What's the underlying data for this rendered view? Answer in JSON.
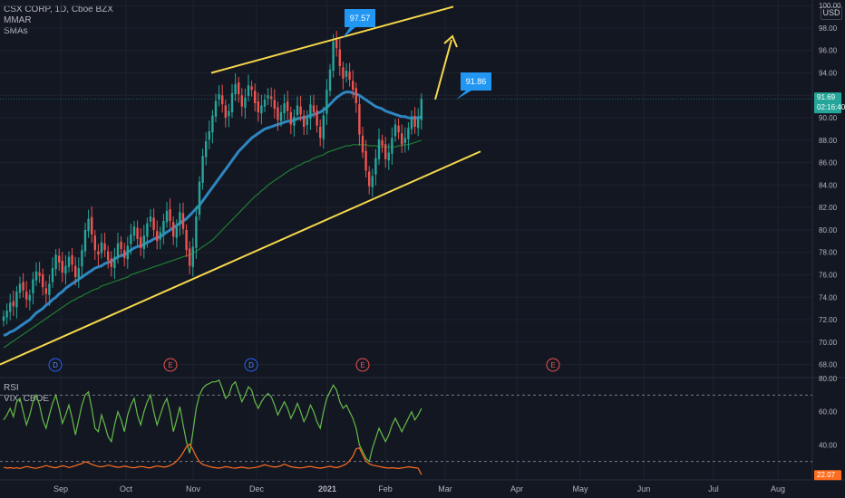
{
  "header": {
    "symbol_line": "CSX CORP, 1D, Cboe BZX",
    "indicator1": "MMAR",
    "indicator2": "SMAs",
    "currency": "USD"
  },
  "lower_pane": {
    "indicator1": "RSI",
    "indicator2": "VIX, CBOE"
  },
  "price_labels": {
    "last_price": "91.69",
    "countdown": "02:16:40",
    "vix_value": "22.07",
    "peak_callout": "97.57",
    "target_callout": "91.86"
  },
  "colors": {
    "background": "#131722",
    "up": "#26a69a",
    "down": "#ef5350",
    "trendline": "#f7d94c",
    "sma_blue": "#2e86c1",
    "sma_green": "#1e7d32",
    "rsi": "#66bb4a",
    "vix": "#ff6d1f",
    "callout": "#2196f3"
  },
  "chart_data": {
    "type": "candlestick",
    "title": "CSX CORP, 1D, Cboe BZX",
    "price_axis": {
      "range": [
        67,
        100.5
      ],
      "ticks": [
        68,
        70,
        72,
        74,
        76,
        78,
        80,
        82,
        84,
        86,
        88,
        90,
        92,
        94,
        96,
        98,
        100
      ]
    },
    "indicator_axis": {
      "range": [
        20,
        80
      ],
      "ticks": [
        40,
        60,
        80
      ],
      "levels": [
        70,
        30
      ]
    },
    "time_axis": [
      "Sep",
      "Oct",
      "Nov",
      "Dec",
      "2021",
      "Feb",
      "Mar",
      "Apr",
      "May",
      "Jun",
      "Jul",
      "Aug"
    ],
    "close_series": [
      72.3,
      72.8,
      73.5,
      73.2,
      74.5,
      75.2,
      74.6,
      73.8,
      74.2,
      75.6,
      76.3,
      75.9,
      74.9,
      74.3,
      75.2,
      76.6,
      77.8,
      77.1,
      76.2,
      76.8,
      77.6,
      76.9,
      75.8,
      76.6,
      78.2,
      80.0,
      81.0,
      79.6,
      78.2,
      77.8,
      78.9,
      78.2,
      77.3,
      76.7,
      77.6,
      78.8,
      78.3,
      77.5,
      78.6,
      79.6,
      80.3,
      79.2,
      78.4,
      79.5,
      80.6,
      81.2,
      80.0,
      79.0,
      79.8,
      80.8,
      81.7,
      80.8,
      79.4,
      80.3,
      81.6,
      80.1,
      78.2,
      76.8,
      78.5,
      81.2,
      84.3,
      86.6,
      87.9,
      88.8,
      90.2,
      91.5,
      92.1,
      91.2,
      90.0,
      90.6,
      92.2,
      93.0,
      92.1,
      91.0,
      91.8,
      92.9,
      92.5,
      91.3,
      90.5,
      91.1,
      91.6,
      92.0,
      91.7,
      90.8,
      89.8,
      90.5,
      91.3,
      90.6,
      89.4,
      90.1,
      91.1,
      90.3,
      89.2,
      90.0,
      91.2,
      90.5,
      89.3,
      88.2,
      90.2,
      92.5,
      94.3,
      96.8,
      96.2,
      94.6,
      93.5,
      94.2,
      93.4,
      92.5,
      91.3,
      88.5,
      86.9,
      85.3,
      83.9,
      84.8,
      86.4,
      88.1,
      87.5,
      86.3,
      86.9,
      88.2,
      89.4,
      88.7,
      87.6,
      88.2,
      89.1,
      90.0,
      89.2,
      89.9,
      91.69
    ],
    "sma_blue": [
      70.6,
      70.7,
      70.9,
      71.0,
      71.2,
      71.4,
      71.6,
      71.8,
      72.0,
      72.3,
      72.6,
      72.8,
      73.0,
      73.3,
      73.5,
      73.8,
      74.0,
      74.3,
      74.5,
      74.8,
      75.0,
      75.2,
      75.4,
      75.6,
      75.8,
      76.0,
      76.2,
      76.4,
      76.6,
      76.7,
      76.8,
      77.0,
      77.1,
      77.2,
      77.4,
      77.6,
      77.7,
      77.8,
      78.0,
      78.2,
      78.4,
      78.5,
      78.6,
      78.7,
      78.9,
      79.0,
      79.2,
      79.3,
      79.4,
      79.6,
      79.8,
      80.0,
      80.2,
      80.4,
      80.6,
      80.8,
      81.0,
      81.3,
      81.6,
      81.9,
      82.2,
      82.6,
      83.0,
      83.4,
      83.8,
      84.2,
      84.6,
      85.0,
      85.4,
      85.8,
      86.2,
      86.6,
      87.0,
      87.3,
      87.6,
      87.9,
      88.2,
      88.4,
      88.6,
      88.8,
      89.0,
      89.1,
      89.2,
      89.3,
      89.4,
      89.5,
      89.6,
      89.7,
      89.7,
      89.8,
      89.9,
      90.0,
      90.0,
      90.1,
      90.2,
      90.3,
      90.4,
      90.5,
      90.7,
      90.9,
      91.2,
      91.5,
      91.8,
      92.0,
      92.2,
      92.3,
      92.3,
      92.2,
      92.1,
      92.0,
      91.8,
      91.6,
      91.4,
      91.2,
      91.0,
      90.9,
      90.8,
      90.6,
      90.5,
      90.4,
      90.3,
      90.2,
      90.1,
      90.1,
      90.0,
      90.0,
      90.0,
      90.0,
      90.1
    ],
    "sma_green": [
      69.5,
      69.7,
      69.9,
      70.1,
      70.3,
      70.5,
      70.7,
      70.9,
      71.1,
      71.3,
      71.5,
      71.7,
      71.9,
      72.1,
      72.3,
      72.5,
      72.7,
      72.9,
      73.1,
      73.3,
      73.5,
      73.7,
      73.8,
      74.0,
      74.1,
      74.3,
      74.4,
      74.6,
      74.7,
      74.8,
      75.0,
      75.1,
      75.2,
      75.3,
      75.4,
      75.5,
      75.6,
      75.7,
      75.8,
      76.0,
      76.1,
      76.2,
      76.3,
      76.4,
      76.5,
      76.6,
      76.7,
      76.8,
      76.9,
      77.0,
      77.1,
      77.2,
      77.3,
      77.4,
      77.5,
      77.6,
      77.7,
      77.8,
      77.9,
      78.1,
      78.3,
      78.5,
      78.7,
      78.9,
      79.1,
      79.4,
      79.7,
      80.0,
      80.3,
      80.6,
      80.9,
      81.2,
      81.5,
      81.8,
      82.1,
      82.4,
      82.7,
      83.0,
      83.2,
      83.5,
      83.7,
      84.0,
      84.2,
      84.4,
      84.6,
      84.8,
      85.0,
      85.2,
      85.4,
      85.5,
      85.7,
      85.8,
      86.0,
      86.1,
      86.2,
      86.4,
      86.5,
      86.6,
      86.7,
      86.9,
      87.0,
      87.1,
      87.2,
      87.3,
      87.4,
      87.5,
      87.5,
      87.6,
      87.6,
      87.6,
      87.6,
      87.6,
      87.5,
      87.5,
      87.5,
      87.4,
      87.4,
      87.4,
      87.4,
      87.4,
      87.4,
      87.5,
      87.5,
      87.6,
      87.6,
      87.7,
      87.8,
      87.9,
      88.0
    ],
    "rsi": [
      55,
      58,
      62,
      57,
      66,
      68,
      60,
      52,
      58,
      66,
      70,
      64,
      55,
      50,
      58,
      65,
      70,
      62,
      53,
      58,
      64,
      56,
      46,
      55,
      64,
      70,
      72,
      62,
      50,
      48,
      58,
      52,
      45,
      42,
      52,
      60,
      55,
      48,
      58,
      64,
      68,
      58,
      52,
      60,
      66,
      70,
      60,
      52,
      58,
      64,
      68,
      60,
      48,
      55,
      63,
      52,
      42,
      35,
      48,
      62,
      70,
      74,
      76,
      77,
      78,
      78,
      79,
      74,
      68,
      70,
      76,
      78,
      72,
      66,
      70,
      75,
      73,
      66,
      62,
      66,
      69,
      71,
      69,
      64,
      58,
      62,
      66,
      62,
      56,
      60,
      65,
      60,
      54,
      58,
      64,
      60,
      54,
      50,
      60,
      68,
      72,
      76,
      73,
      66,
      62,
      64,
      60,
      56,
      50,
      40,
      36,
      32,
      30,
      38,
      44,
      50,
      46,
      42,
      46,
      52,
      56,
      52,
      48,
      52,
      56,
      60,
      55,
      58,
      62
    ],
    "vix": [
      26.5,
      26.0,
      26.3,
      25.9,
      26.2,
      25.8,
      26.4,
      27.0,
      26.6,
      26.1,
      25.9,
      26.4,
      26.9,
      27.6,
      27.0,
      26.5,
      26.2,
      26.8,
      27.4,
      27.0,
      26.4,
      26.8,
      27.5,
      28.2,
      28.8,
      29.8,
      29.2,
      28.3,
      27.6,
      27.0,
      26.8,
      27.2,
      27.8,
      27.4,
      26.9,
      26.5,
      26.7,
      27.2,
      26.8,
      26.4,
      26.2,
      26.6,
      27.0,
      26.7,
      26.3,
      26.2,
      26.8,
      27.3,
      27.0,
      26.6,
      26.9,
      27.6,
      28.6,
      30.2,
      32.5,
      35.4,
      38.9,
      40.5,
      37.2,
      33.0,
      29.8,
      28.2,
      27.6,
      27.0,
      26.5,
      26.2,
      26.0,
      26.4,
      26.9,
      26.6,
      26.1,
      26.0,
      26.3,
      26.6,
      26.2,
      25.9,
      26.1,
      26.4,
      26.7,
      27.3,
      28.0,
      27.5,
      27.0,
      26.6,
      26.9,
      27.5,
      28.4,
      27.6,
      26.9,
      26.5,
      26.3,
      26.1,
      26.4,
      26.8,
      27.0,
      26.6,
      26.2,
      26.0,
      26.3,
      26.7,
      27.1,
      26.6,
      26.3,
      26.8,
      27.6,
      28.5,
      30.4,
      33.2,
      37.6,
      38.2,
      34.0,
      30.2,
      28.6,
      27.8,
      27.4,
      27.0,
      26.6,
      26.2,
      26.0,
      26.2,
      26.0,
      25.8,
      26.1,
      26.4,
      26.8,
      26.5,
      26.2,
      26.0,
      22.07
    ],
    "trendlines": [
      {
        "name": "channel-upper",
        "points": [
          [
            "2020-11-03",
            94.0
          ],
          [
            "2021-02-24",
            99.9
          ]
        ]
      },
      {
        "name": "channel-lower",
        "points": [
          [
            "2020-07-30",
            68.0
          ],
          [
            "2021-03-15",
            87.0
          ]
        ]
      }
    ],
    "annotations": [
      {
        "label": "97.57",
        "at_price": 97.57
      },
      {
        "label": "91.86",
        "at_price": 91.86
      }
    ],
    "event_markers": [
      {
        "letter": "D",
        "month": "Aug"
      },
      {
        "letter": "E",
        "month": "Oct"
      },
      {
        "letter": "D",
        "month": "Nov"
      },
      {
        "letter": "E",
        "month": "Jan"
      },
      {
        "letter": "E",
        "month": "Apr"
      }
    ]
  }
}
